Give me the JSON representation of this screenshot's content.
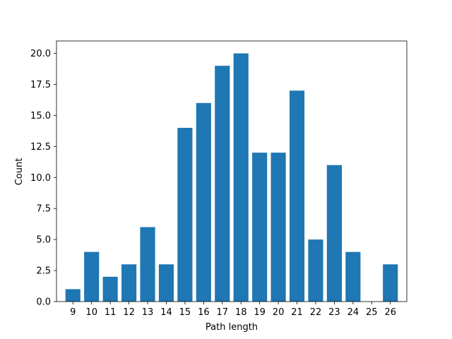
{
  "chart_data": {
    "type": "bar",
    "title": "",
    "xlabel": "Path length",
    "ylabel": "Count",
    "categories": [
      "9",
      "10",
      "11",
      "12",
      "13",
      "14",
      "15",
      "16",
      "17",
      "18",
      "19",
      "20",
      "21",
      "22",
      "23",
      "24",
      "25",
      "26"
    ],
    "values": [
      1,
      4,
      2,
      3,
      6,
      3,
      14,
      16,
      19,
      20,
      12,
      12,
      17,
      5,
      11,
      4,
      0,
      3
    ],
    "x": [
      9,
      10,
      11,
      12,
      13,
      14,
      15,
      16,
      17,
      18,
      19,
      20,
      21,
      22,
      23,
      24,
      25,
      26
    ],
    "xlim": [
      8.12,
      26.88
    ],
    "ylim": [
      0,
      21
    ],
    "yticks": [
      0.0,
      2.5,
      5.0,
      7.5,
      10.0,
      12.5,
      15.0,
      17.5,
      20.0
    ],
    "ytick_labels": [
      "0.0",
      "2.5",
      "5.0",
      "7.5",
      "10.0",
      "12.5",
      "15.0",
      "17.5",
      "20.0"
    ],
    "bar_color": "#1f77b4",
    "grid": false,
    "legend": "none"
  }
}
